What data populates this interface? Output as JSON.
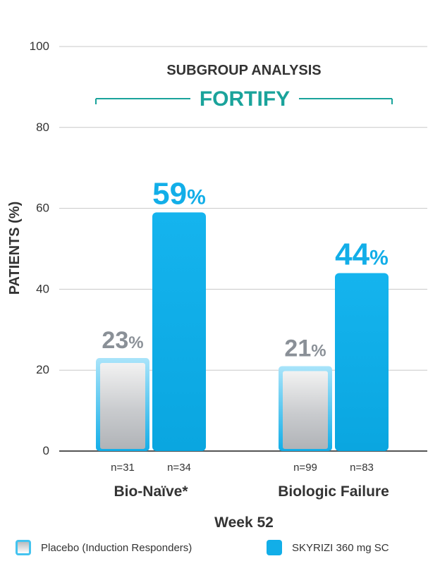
{
  "chart_data": {
    "type": "bar",
    "title": "SUBGROUP ANALYSIS",
    "subtitle": "FORTIFY",
    "xlabel": "Week 52",
    "ylabel": "PATIENTS (%)",
    "ylim": [
      0,
      100
    ],
    "yticks": [
      0,
      20,
      40,
      60,
      80,
      100
    ],
    "categories": [
      "Bio-Naïve*",
      "Biologic Failure"
    ],
    "series": [
      {
        "name": "Placebo (Induction Responders)",
        "values": [
          23,
          21
        ],
        "n_labels": [
          "n=31",
          "n=99"
        ],
        "value_labels": [
          "23",
          "21"
        ]
      },
      {
        "name": "SKYRIZI 360 mg SC",
        "values": [
          59,
          44
        ],
        "n_labels": [
          "n=34",
          "n=83"
        ],
        "value_labels": [
          "59",
          "44"
        ]
      }
    ],
    "percent_sign": "%"
  },
  "colors": {
    "skyrizi": "#12aee8",
    "placebo_value": "#8a9097",
    "title_accent": "#1aa39b",
    "axis_text": "#333333",
    "grid": "#c8c8c8"
  }
}
